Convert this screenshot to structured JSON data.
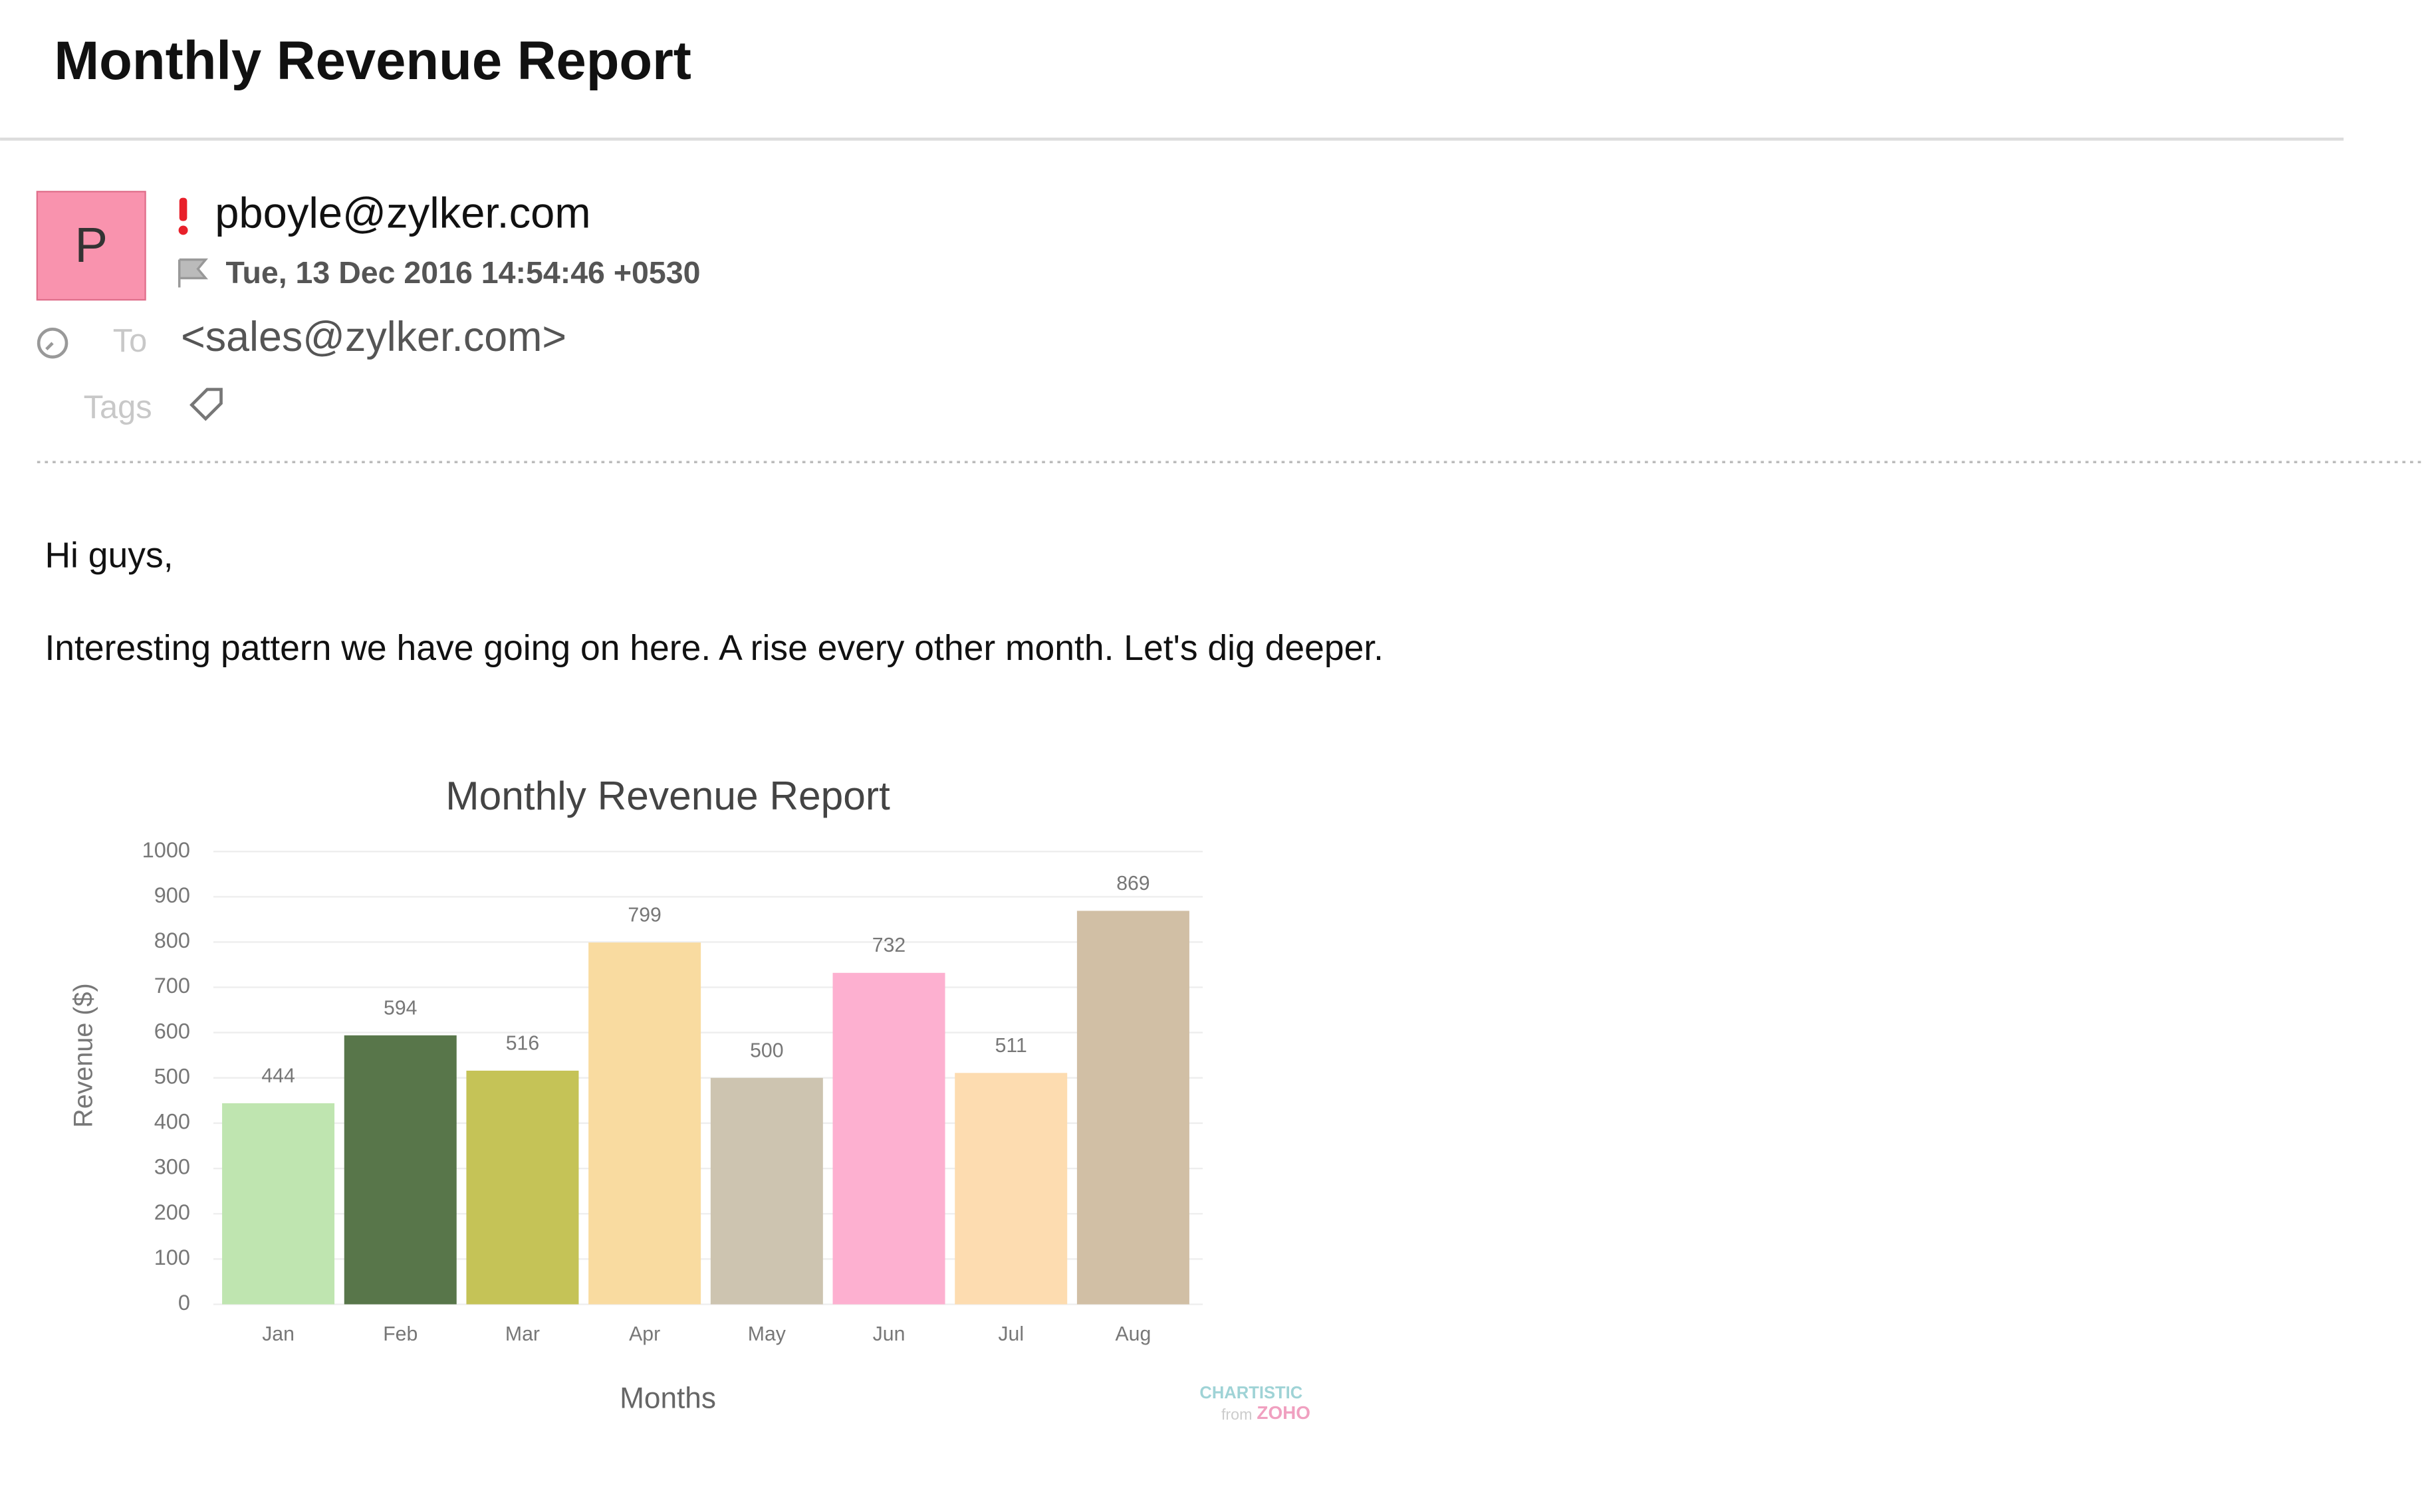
{
  "email": {
    "subject": "Monthly Revenue Report",
    "avatar": "P",
    "from": "pboyle@zylker.com",
    "date": "Tue, 13 Dec 2016 14:54:46 +0530",
    "to_label": "To",
    "to": "<sales@zylker.com>",
    "tags_label": "Tags",
    "greeting": "Hi guys,",
    "body": "Interesting pattern we have going on here. A rise every other month. Let's dig deeper."
  },
  "chart_data": {
    "type": "bar",
    "title": "Monthly Revenue Report",
    "x_label": "Months",
    "y_label": "Revenue ($)",
    "categories": [
      "Jan",
      "Feb",
      "Mar",
      "Apr",
      "May",
      "Jun",
      "Jul",
      "Aug"
    ],
    "values": [
      444,
      594,
      516,
      799,
      500,
      732,
      511,
      869
    ],
    "colors": [
      "#bfe5b0",
      "#58764a",
      "#c5c357",
      "#f9dba0",
      "#cdc4b0",
      "#fdb0d0",
      "#fddcb0",
      "#d1bfa5"
    ],
    "ylim": [
      0,
      1000
    ],
    "yticks": [
      0,
      100,
      200,
      300,
      400,
      500,
      600,
      700,
      800,
      900,
      1000
    ],
    "grid": true,
    "watermark": "CHARTISTIC",
    "watermark_from": "from",
    "watermark_brand": "ZOHO"
  }
}
